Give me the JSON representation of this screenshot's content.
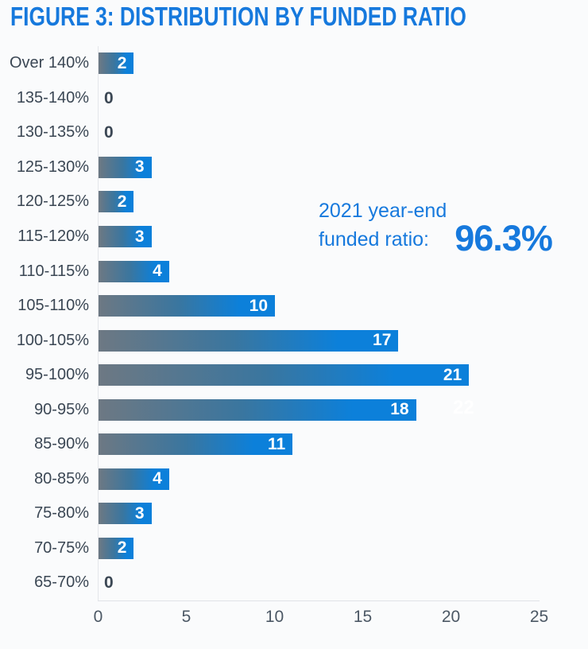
{
  "figure": {
    "title": "FIGURE 3: DISTRIBUTION BY FUNDED RATIO"
  },
  "annotation": {
    "line1": "2021 year-end",
    "line2": "funded ratio:",
    "value": "96.3%"
  },
  "ghost_label": "22",
  "chart_data": {
    "type": "bar",
    "orientation": "horizontal",
    "title": "FIGURE 3: DISTRIBUTION BY FUNDED RATIO",
    "categories": [
      "Over 140%",
      "135-140%",
      "130-135%",
      "125-130%",
      "120-125%",
      "115-120%",
      "110-115%",
      "105-110%",
      "100-105%",
      "95-100%",
      "90-95%",
      "85-90%",
      "80-85%",
      "75-80%",
      "70-75%",
      "65-70%"
    ],
    "values": [
      2,
      0,
      0,
      3,
      2,
      3,
      4,
      10,
      17,
      21,
      18,
      11,
      4,
      3,
      2,
      0
    ],
    "xlabel": "",
    "xlim": [
      0,
      25
    ],
    "x_ticks": [
      0,
      5,
      10,
      15,
      20,
      25
    ],
    "grid": false,
    "annotation": "2021 year-end funded ratio: 96.3%",
    "ghost_artifact_label": "22",
    "colors": {
      "accent_blue": "#1679dd",
      "bar_gradient_start": "#6d7883",
      "bar_gradient_end": "#0c80da",
      "label_dark": "#3b4754",
      "tick_gray": "#4c5865",
      "axis_line": "#e0e3e7",
      "background": "#fafbfc"
    }
  }
}
